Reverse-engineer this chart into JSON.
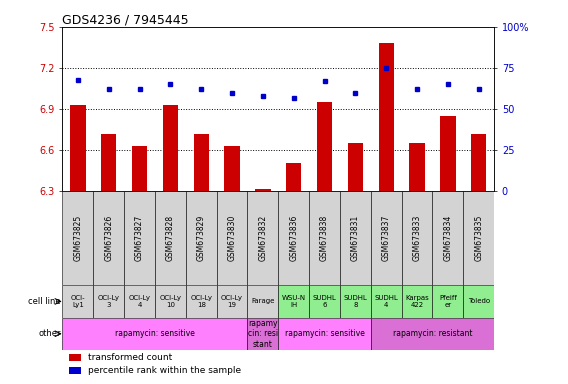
{
  "title": "GDS4236 / 7945445",
  "samples": [
    "GSM673825",
    "GSM673826",
    "GSM673827",
    "GSM673828",
    "GSM673829",
    "GSM673830",
    "GSM673832",
    "GSM673836",
    "GSM673838",
    "GSM673831",
    "GSM673837",
    "GSM673833",
    "GSM673834",
    "GSM673835"
  ],
  "bar_values": [
    6.93,
    6.72,
    6.63,
    6.93,
    6.72,
    6.63,
    6.32,
    6.51,
    6.95,
    6.65,
    7.38,
    6.65,
    6.85,
    6.72
  ],
  "dot_values": [
    68,
    62,
    62,
    65,
    62,
    60,
    58,
    57,
    67,
    60,
    75,
    62,
    65,
    62
  ],
  "cell_lines": [
    "OCI-\nLy1",
    "OCI-Ly\n3",
    "OCI-Ly\n4",
    "OCI-Ly\n10",
    "OCI-Ly\n18",
    "OCI-Ly\n19",
    "Farage",
    "WSU-N\nIH",
    "SUDHL\n6",
    "SUDHL\n8",
    "SUDHL\n4",
    "Karpas\n422",
    "Pfeiff\ner",
    "Toledo"
  ],
  "cell_bg_colors": [
    "#d3d3d3",
    "#d3d3d3",
    "#d3d3d3",
    "#d3d3d3",
    "#d3d3d3",
    "#d3d3d3",
    "#d3d3d3",
    "#90ee90",
    "#90ee90",
    "#90ee90",
    "#90ee90",
    "#90ee90",
    "#90ee90",
    "#90ee90"
  ],
  "other_groups": [
    {
      "label": "rapamycin: sensitive",
      "start": 0,
      "end": 6,
      "color": "#ff80ff"
    },
    {
      "label": "rapamy\ncin: resi\nstant",
      "start": 6,
      "end": 7,
      "color": "#da70d6"
    },
    {
      "label": "rapamycin: sensitive",
      "start": 7,
      "end": 10,
      "color": "#ff80ff"
    },
    {
      "label": "rapamycin: resistant",
      "start": 10,
      "end": 14,
      "color": "#da70d6"
    }
  ],
  "ylim_left": [
    6.3,
    7.5
  ],
  "ylim_right": [
    0,
    100
  ],
  "yticks_left": [
    6.3,
    6.6,
    6.9,
    7.2,
    7.5
  ],
  "yticks_right": [
    0,
    25,
    50,
    75,
    100
  ],
  "bar_color": "#cc0000",
  "dot_color": "#0000cc",
  "hline_values": [
    7.2,
    6.9,
    6.6
  ],
  "sample_bg": "#d3d3d3"
}
